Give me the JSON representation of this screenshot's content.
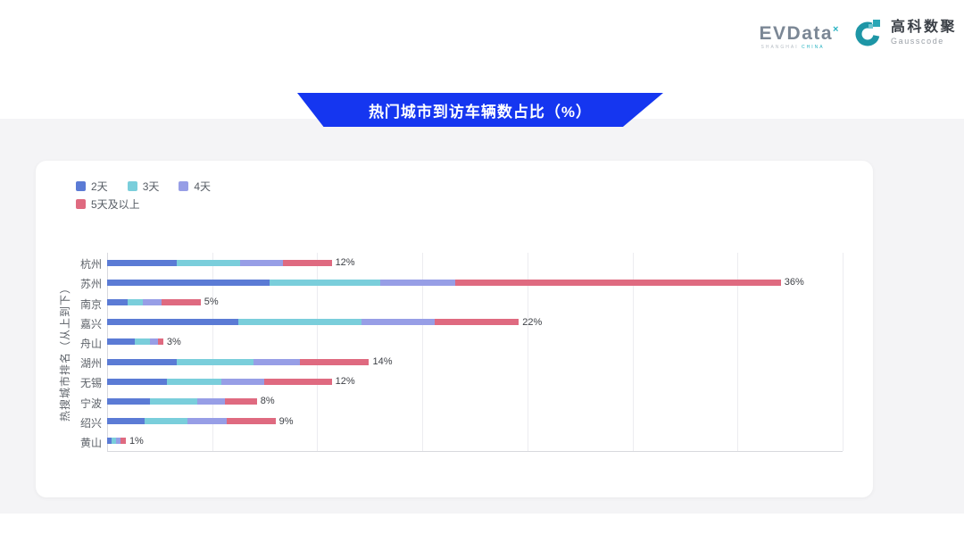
{
  "header": {
    "evdata_logo": {
      "text": "EVData",
      "superscript": "×",
      "subtext_left": "SHANGHAI",
      "subtext_right": "CHINA"
    },
    "gausscode_logo": {
      "cn": "高科数聚",
      "en": "Gausscode"
    }
  },
  "banner": {
    "title": "热门城市到访车辆数占比（%）"
  },
  "chart_data": {
    "type": "bar",
    "orientation": "horizontal",
    "stacked": true,
    "title": "热门城市到访车辆数占比（%）",
    "ylabel": "热搜城市排名（从上到下）",
    "xlabel": "",
    "categories": [
      "杭州",
      "苏州",
      "南京",
      "嘉兴",
      "舟山",
      "湖州",
      "无锡",
      "宁波",
      "绍兴",
      "黄山"
    ],
    "totals": [
      12,
      36,
      5,
      22,
      3,
      14,
      12,
      8,
      9,
      1
    ],
    "total_labels": [
      "12%",
      "36%",
      "5%",
      "22%",
      "3%",
      "14%",
      "12%",
      "8%",
      "9%",
      "1%"
    ],
    "series": [
      {
        "name": "2天",
        "color": "#5B7BD5",
        "values": [
          3.7,
          8.7,
          1.1,
          7.0,
          1.5,
          3.7,
          3.2,
          2.3,
          2.0,
          0.25
        ]
      },
      {
        "name": "3天",
        "color": "#7ACEDB",
        "values": [
          3.4,
          5.9,
          0.8,
          6.6,
          0.8,
          4.1,
          2.9,
          2.5,
          2.3,
          0.25
        ]
      },
      {
        "name": "4天",
        "color": "#979EE6",
        "values": [
          2.3,
          4.0,
          1.0,
          3.9,
          0.4,
          2.5,
          2.3,
          1.5,
          2.1,
          0.2
        ]
      },
      {
        "name": "5天及以上",
        "color": "#DF6A80",
        "values": [
          2.6,
          17.4,
          2.1,
          4.5,
          0.3,
          3.7,
          3.6,
          1.7,
          2.6,
          0.3
        ]
      }
    ],
    "xlim": [
      0,
      39.3
    ],
    "grid": true,
    "gridline_count": 7,
    "legend_position": "top-left",
    "colors": {
      "banner_blue": "#1536F0",
      "axis_line": "#D8D9DE",
      "gridline": "#ECECF0",
      "logo_teal": "#2AB3C2"
    }
  }
}
